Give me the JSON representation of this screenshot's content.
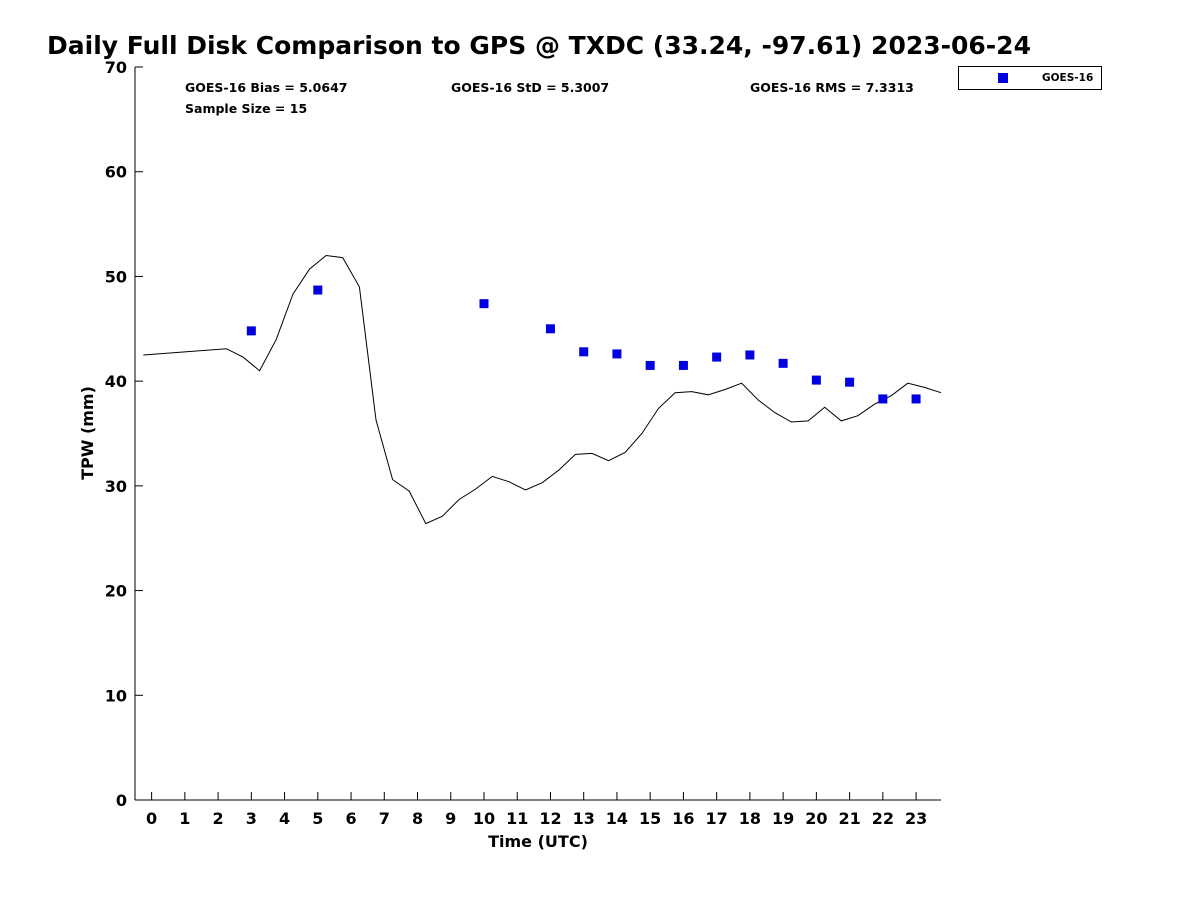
{
  "chart_data": {
    "type": "scatter",
    "title": "Daily Full Disk Comparison to GPS @ TXDC (33.24, -97.61) 2023-06-24",
    "xlabel": "Time (UTC)",
    "ylabel": "TPW (mm)",
    "xlim": [
      -0.5,
      23.75
    ],
    "ylim": [
      0,
      70
    ],
    "x_ticks": [
      0,
      1,
      2,
      3,
      4,
      5,
      6,
      7,
      8,
      9,
      10,
      11,
      12,
      13,
      14,
      15,
      16,
      17,
      18,
      19,
      20,
      21,
      22,
      23
    ],
    "x_tick_labels": [
      "0",
      "1",
      "2",
      "3",
      "4",
      "5",
      "6",
      "7",
      "8",
      "9",
      "10",
      "11",
      "12",
      "13",
      "14",
      "15",
      "16",
      "17",
      "18",
      "19",
      "20",
      "21",
      "22",
      "23"
    ],
    "y_ticks": [
      0,
      10,
      20,
      30,
      40,
      50,
      60,
      70
    ],
    "y_tick_labels": [
      "0",
      "10",
      "20",
      "30",
      "40",
      "50",
      "60",
      "70"
    ],
    "grid": false,
    "legend_position": "top-right, outside plot",
    "annotations": {
      "bias": "GOES-16 Bias = 5.0647",
      "std": "GOES-16 StD = 5.3007",
      "rms": "GOES-16 RMS = 7.3313",
      "sample_size": "Sample Size = 15"
    },
    "series": [
      {
        "name": "GOES-16",
        "kind": "scatter",
        "marker": "square",
        "color": "#0000e0",
        "x": [
          3.0,
          5.0,
          10.0,
          12.0,
          13.0,
          14.0,
          15.0,
          16.0,
          17.0,
          18.0,
          19.0,
          20.0,
          21.0,
          22.0,
          23.0
        ],
        "y": [
          44.8,
          48.7,
          47.4,
          45.0,
          42.8,
          42.6,
          41.5,
          41.5,
          42.3,
          42.5,
          41.7,
          40.1,
          39.9,
          38.3,
          38.3
        ]
      },
      {
        "kind": "line",
        "color": "#000000",
        "x": [
          -0.25,
          2.25,
          2.75,
          3.25,
          3.75,
          4.25,
          4.75,
          5.25,
          5.75,
          6.25,
          6.75,
          7.25,
          7.75,
          8.25,
          8.75,
          9.25,
          9.75,
          10.25,
          10.75,
          11.25,
          11.75,
          12.25,
          12.75,
          13.25,
          13.75,
          14.25,
          14.75,
          15.25,
          15.75,
          16.25,
          16.75,
          17.25,
          17.75,
          18.25,
          18.75,
          19.25,
          19.75,
          20.25,
          20.75,
          21.25,
          21.75,
          22.25,
          22.75,
          23.25,
          23.75
        ],
        "y": [
          42.5,
          43.1,
          42.3,
          41.0,
          44.0,
          48.3,
          50.7,
          52.0,
          51.8,
          49.0,
          36.3,
          30.6,
          29.5,
          26.4,
          27.1,
          28.7,
          29.7,
          30.9,
          30.4,
          29.6,
          30.3,
          31.5,
          33.0,
          33.1,
          32.4,
          33.2,
          35.0,
          37.4,
          38.9,
          39.0,
          38.7,
          39.2,
          39.8,
          38.2,
          37.0,
          36.1,
          36.2,
          37.5,
          36.2,
          36.7,
          37.8,
          38.6,
          39.8,
          39.4,
          38.9
        ]
      }
    ]
  }
}
